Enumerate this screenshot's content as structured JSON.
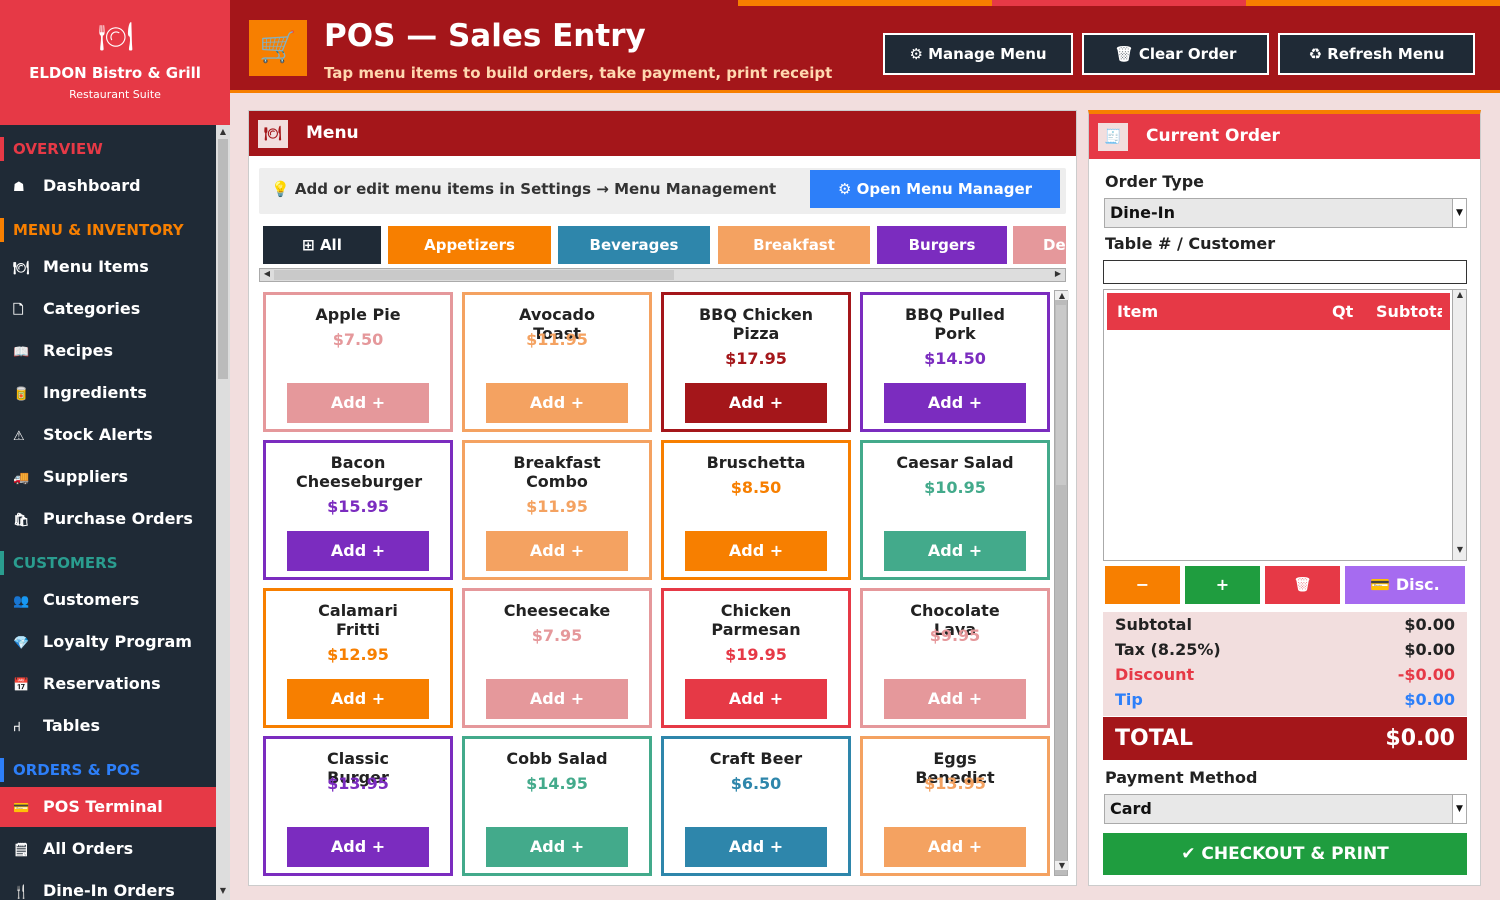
{
  "brand": {
    "logo_glyph": "🍽",
    "name": "ELDON Bistro & Grill",
    "subtitle": "Restaurant Suite"
  },
  "sidebar": {
    "sections": [
      {
        "label": "OVERVIEW",
        "color": "#e63946"
      },
      {
        "label": "MENU & INVENTORY",
        "color": "#f77f00"
      },
      {
        "label": "CUSTOMERS",
        "color": "#2a9d8f"
      },
      {
        "label": "ORDERS & POS",
        "color": "#2d7ff9"
      }
    ],
    "items": [
      {
        "icon": "☗",
        "label": "Dashboard"
      },
      {
        "icon": "🍽",
        "label": "Menu Items"
      },
      {
        "icon": "🗋",
        "label": "Categories"
      },
      {
        "icon": "📖",
        "label": "Recipes"
      },
      {
        "icon": "🥫",
        "label": "Ingredients"
      },
      {
        "icon": "⚠",
        "label": "Stock Alerts"
      },
      {
        "icon": "🚚",
        "label": "Suppliers"
      },
      {
        "icon": "🛍",
        "label": "Purchase Orders"
      },
      {
        "icon": "👥",
        "label": "Customers"
      },
      {
        "icon": "💎",
        "label": "Loyalty Program"
      },
      {
        "icon": "📅",
        "label": "Reservations"
      },
      {
        "icon": "⑁",
        "label": "Tables"
      },
      {
        "icon": "💳",
        "label": "POS Terminal"
      },
      {
        "icon": "🗒",
        "label": "All Orders"
      },
      {
        "icon": "🍴",
        "label": "Dine-In Orders"
      }
    ]
  },
  "header": {
    "icon": "🛒",
    "title": "POS — Sales Entry",
    "subtitle": "Tap menu items to build orders, take payment, print receipt",
    "buttons": [
      {
        "label": "⚙ Manage Menu",
        "border": "#2a9d8f"
      },
      {
        "label": "🗑 Clear Order",
        "border": "#f77f00"
      },
      {
        "label": "♻ Refresh Menu",
        "border": "#e63946"
      }
    ]
  },
  "menu_panel": {
    "icon": "🍽",
    "title": "Menu",
    "hint": "💡 Add or edit menu items in Settings → Menu Management",
    "open_manager": "⚙ Open Menu Manager",
    "categories": [
      {
        "label": "⊞ All",
        "color": "#1f2a36"
      },
      {
        "label": "Appetizers",
        "color": "#f77f00"
      },
      {
        "label": "Beverages",
        "color": "#2e86ab"
      },
      {
        "label": "Breakfast",
        "color": "#f4a261"
      },
      {
        "label": "Burgers",
        "color": "#7b2cbf"
      },
      {
        "label": "De",
        "color": "#e5989b"
      }
    ],
    "add_label": "Add +",
    "items": [
      {
        "name": "Apple Pie",
        "price": "$7.50",
        "color": "#e5989b"
      },
      {
        "name": "Avocado Toast",
        "price": "$11.95",
        "color": "#f4a261"
      },
      {
        "name": "BBQ Chicken Pizza",
        "price": "$17.95",
        "color": "#a4161a"
      },
      {
        "name": "BBQ Pulled Pork",
        "price": "$14.50",
        "color": "#7b2cbf"
      },
      {
        "name": "Bacon Cheeseburger",
        "price": "$15.95",
        "color": "#7b2cbf"
      },
      {
        "name": "Breakfast Combo",
        "price": "$11.95",
        "color": "#f4a261"
      },
      {
        "name": "Bruschetta",
        "price": "$8.50",
        "color": "#f77f00"
      },
      {
        "name": "Caesar Salad",
        "price": "$10.95",
        "color": "#43aa8b"
      },
      {
        "name": "Calamari Fritti",
        "price": "$12.95",
        "color": "#f77f00"
      },
      {
        "name": "Cheesecake",
        "price": "$7.95",
        "color": "#e5989b"
      },
      {
        "name": "Chicken Parmesan",
        "price": "$19.95",
        "color": "#e63946"
      },
      {
        "name": "Chocolate Lava",
        "price": "$9.95",
        "color": "#e5989b"
      },
      {
        "name": "Classic Burger",
        "price": "$13.95",
        "color": "#7b2cbf"
      },
      {
        "name": "Cobb Salad",
        "price": "$14.95",
        "color": "#43aa8b"
      },
      {
        "name": "Craft Beer",
        "price": "$6.50",
        "color": "#2e86ab"
      },
      {
        "name": "Eggs Benedict",
        "price": "$13.95",
        "color": "#f4a261"
      }
    ]
  },
  "order_panel": {
    "icon": "🧾",
    "title": "Current Order",
    "order_type_label": "Order Type",
    "order_type_value": "Dine-In",
    "table_label": "Table # / Customer",
    "table_value": "",
    "columns": {
      "item": "Item",
      "qty": "Qt",
      "subtotal": "Subtota"
    },
    "buttons": {
      "minus": "−",
      "plus": "+",
      "delete": "🗑",
      "discount": "💳 Disc."
    },
    "totals": [
      {
        "label": "Subtotal",
        "value": "$0.00",
        "color": "#222"
      },
      {
        "label": "Tax (8.25%)",
        "value": "$0.00",
        "color": "#222"
      },
      {
        "label": "Discount",
        "value": "-$0.00",
        "color": "#e63946"
      },
      {
        "label": "Tip",
        "value": "$0.00",
        "color": "#2d7ff9"
      }
    ],
    "total_label": "TOTAL",
    "total_value": "$0.00",
    "payment_label": "Payment Method",
    "payment_value": "Card",
    "checkout": "✔ CHECKOUT & PRINT"
  }
}
